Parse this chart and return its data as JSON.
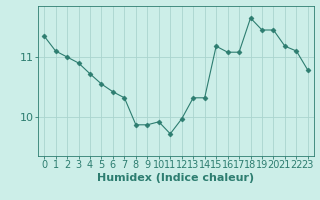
{
  "x": [
    0,
    1,
    2,
    3,
    4,
    5,
    6,
    7,
    8,
    9,
    10,
    11,
    12,
    13,
    14,
    15,
    16,
    17,
    18,
    19,
    20,
    21,
    22,
    23
  ],
  "y": [
    11.35,
    11.1,
    11.0,
    10.9,
    10.72,
    10.55,
    10.42,
    10.32,
    9.87,
    9.87,
    9.92,
    9.72,
    9.97,
    10.32,
    10.32,
    11.18,
    11.08,
    11.08,
    11.65,
    11.45,
    11.45,
    11.18,
    11.1,
    10.78
  ],
  "line_color": "#2d7d70",
  "marker": "D",
  "marker_size": 2.5,
  "bg_color": "#cceee8",
  "grid_color": "#aad4ce",
  "axis_color": "#2d7d70",
  "xlabel": "Humidex (Indice chaleur)",
  "yticks": [
    10,
    11
  ],
  "ylim": [
    9.35,
    11.85
  ],
  "xlim": [
    -0.5,
    23.5
  ],
  "font_color": "#2d7d70",
  "tick_fontsize": 7,
  "label_fontsize": 8
}
